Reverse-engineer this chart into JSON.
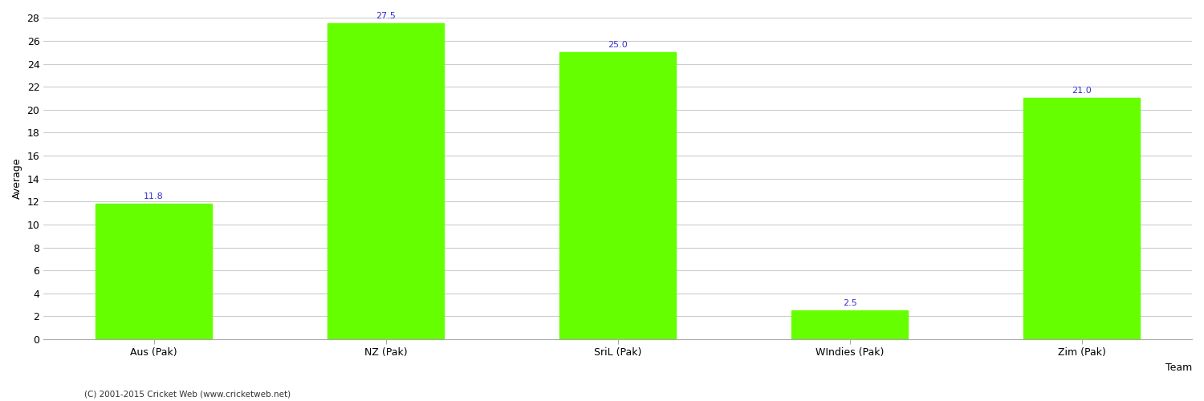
{
  "categories": [
    "Aus (Pak)",
    "NZ (Pak)",
    "SriL (Pak)",
    "WIndies (Pak)",
    "Zim (Pak)"
  ],
  "values": [
    11.8,
    27.5,
    25.0,
    2.5,
    21.0
  ],
  "bar_color": "#66ff00",
  "bar_edge_color": "#66ff00",
  "label_color": "#3333cc",
  "xlabel": "Team",
  "ylabel": "Average",
  "ylim": [
    0,
    28
  ],
  "yticks": [
    0,
    2,
    4,
    6,
    8,
    10,
    12,
    14,
    16,
    18,
    20,
    22,
    24,
    26,
    28
  ],
  "grid_color": "#cccccc",
  "background_color": "#ffffff",
  "footer": "(C) 2001-2015 Cricket Web (www.cricketweb.net)",
  "label_fontsize": 8,
  "axis_fontsize": 9,
  "title_fontsize": 11
}
